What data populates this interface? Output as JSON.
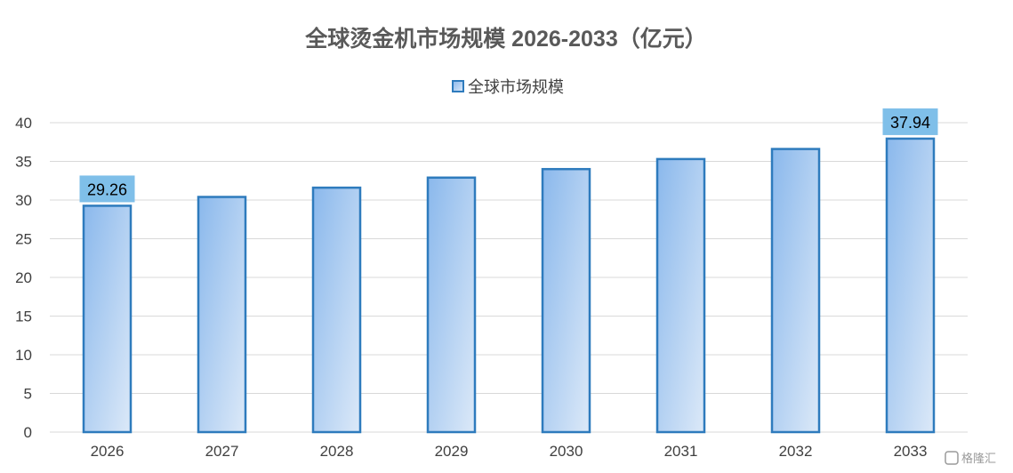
{
  "chart_data": {
    "type": "bar",
    "title": "全球烫金机市场规模 2026-2033（亿元）",
    "categories": [
      "2026",
      "2027",
      "2028",
      "2029",
      "2030",
      "2031",
      "2032",
      "2033"
    ],
    "series": [
      {
        "name": "全球市场规模",
        "values": [
          29.26,
          30.4,
          31.6,
          32.9,
          34.0,
          35.3,
          36.6,
          37.94
        ]
      }
    ],
    "data_labels": [
      {
        "category": "2026",
        "text": "29.26"
      },
      {
        "category": "2033",
        "text": "37.94"
      }
    ],
    "ylim": [
      0,
      40
    ],
    "yticks": [
      0,
      5,
      10,
      15,
      20,
      25,
      30,
      35,
      40
    ],
    "grid": true,
    "legend_position": "top-center",
    "colors": {
      "bar_fill_start": "#8ab8ec",
      "bar_fill_end": "#dce9f8",
      "bar_stroke": "#2e7bbd",
      "label_bg": "#7fbfe9",
      "grid": "#d9d9d9"
    }
  },
  "watermark": "格隆汇"
}
